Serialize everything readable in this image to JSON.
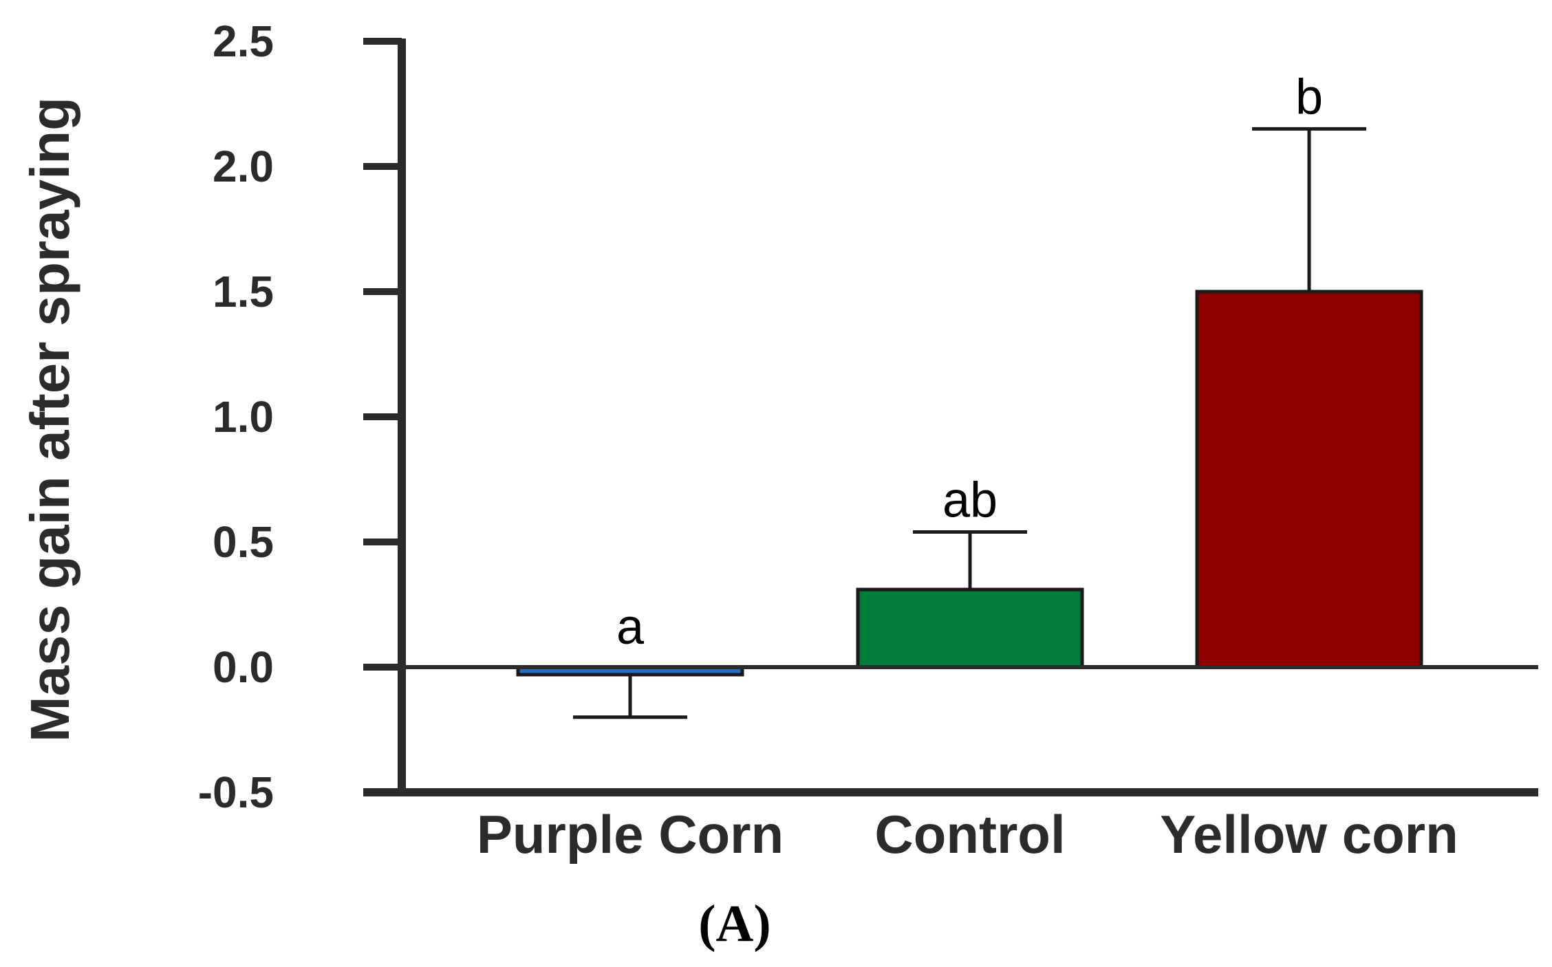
{
  "chart_data": {
    "type": "bar",
    "title": "",
    "xlabel": "",
    "ylabel": "Mass gain after spraying",
    "panel_label": "(A)",
    "ylim": [
      -0.5,
      2.5
    ],
    "yticks": [
      "2.5",
      "2.0",
      "1.5",
      "1.0",
      "0.5",
      "0.0",
      "-0.5"
    ],
    "ytick_values": [
      2.5,
      2.0,
      1.5,
      1.0,
      0.5,
      0.0,
      -0.5
    ],
    "categories": [
      "Purple Corn",
      "Control",
      "Yellow corn"
    ],
    "values": [
      -0.03,
      0.31,
      1.5
    ],
    "errors": [
      0.17,
      0.23,
      0.65
    ],
    "significance": [
      "a",
      "ab",
      "b"
    ],
    "colors": [
      "#1f6fd1",
      "#027c39",
      "#8e0000"
    ],
    "grid": false
  }
}
